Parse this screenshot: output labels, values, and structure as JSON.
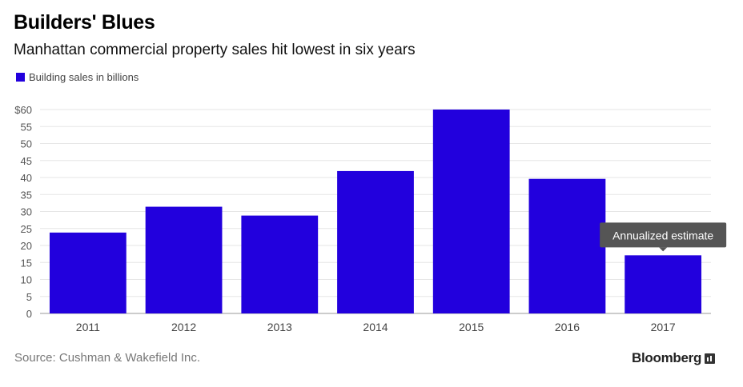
{
  "header": {
    "title": "Builders' Blues",
    "subtitle": "Manhattan commercial property sales hit lowest in six years"
  },
  "footer": {
    "source": "Source: Cushman & Wakefield Inc.",
    "brand": "Bloomberg",
    "brand_icon": "bloomberg-chart-icon"
  },
  "colors": {
    "bar": "#2200dd",
    "grid": "#e6e6e6",
    "axis": "#999999",
    "tooltip_bg": "#555555"
  },
  "chart_data": {
    "type": "bar",
    "title": "Builders' Blues",
    "subtitle": "Manhattan commercial property sales hit lowest in six years",
    "categories": [
      "2011",
      "2012",
      "2013",
      "2014",
      "2015",
      "2016",
      "2017"
    ],
    "series": [
      {
        "name": "Building sales in billions",
        "values": [
          23.8,
          31.4,
          28.8,
          41.9,
          60.0,
          39.6,
          17.1
        ]
      }
    ],
    "ylim": [
      0,
      60
    ],
    "yticks": [
      0,
      5,
      10,
      15,
      20,
      25,
      30,
      35,
      40,
      45,
      50,
      55,
      60
    ],
    "ytick_labels": [
      "0",
      "5",
      "10",
      "15",
      "20",
      "25",
      "30",
      "35",
      "40",
      "45",
      "50",
      "55",
      "$60"
    ],
    "xlabel": "",
    "ylabel": "",
    "grid": true,
    "legend": "top-left",
    "annotations": [
      {
        "category": "2017",
        "text": "Annualized estimate"
      }
    ]
  }
}
